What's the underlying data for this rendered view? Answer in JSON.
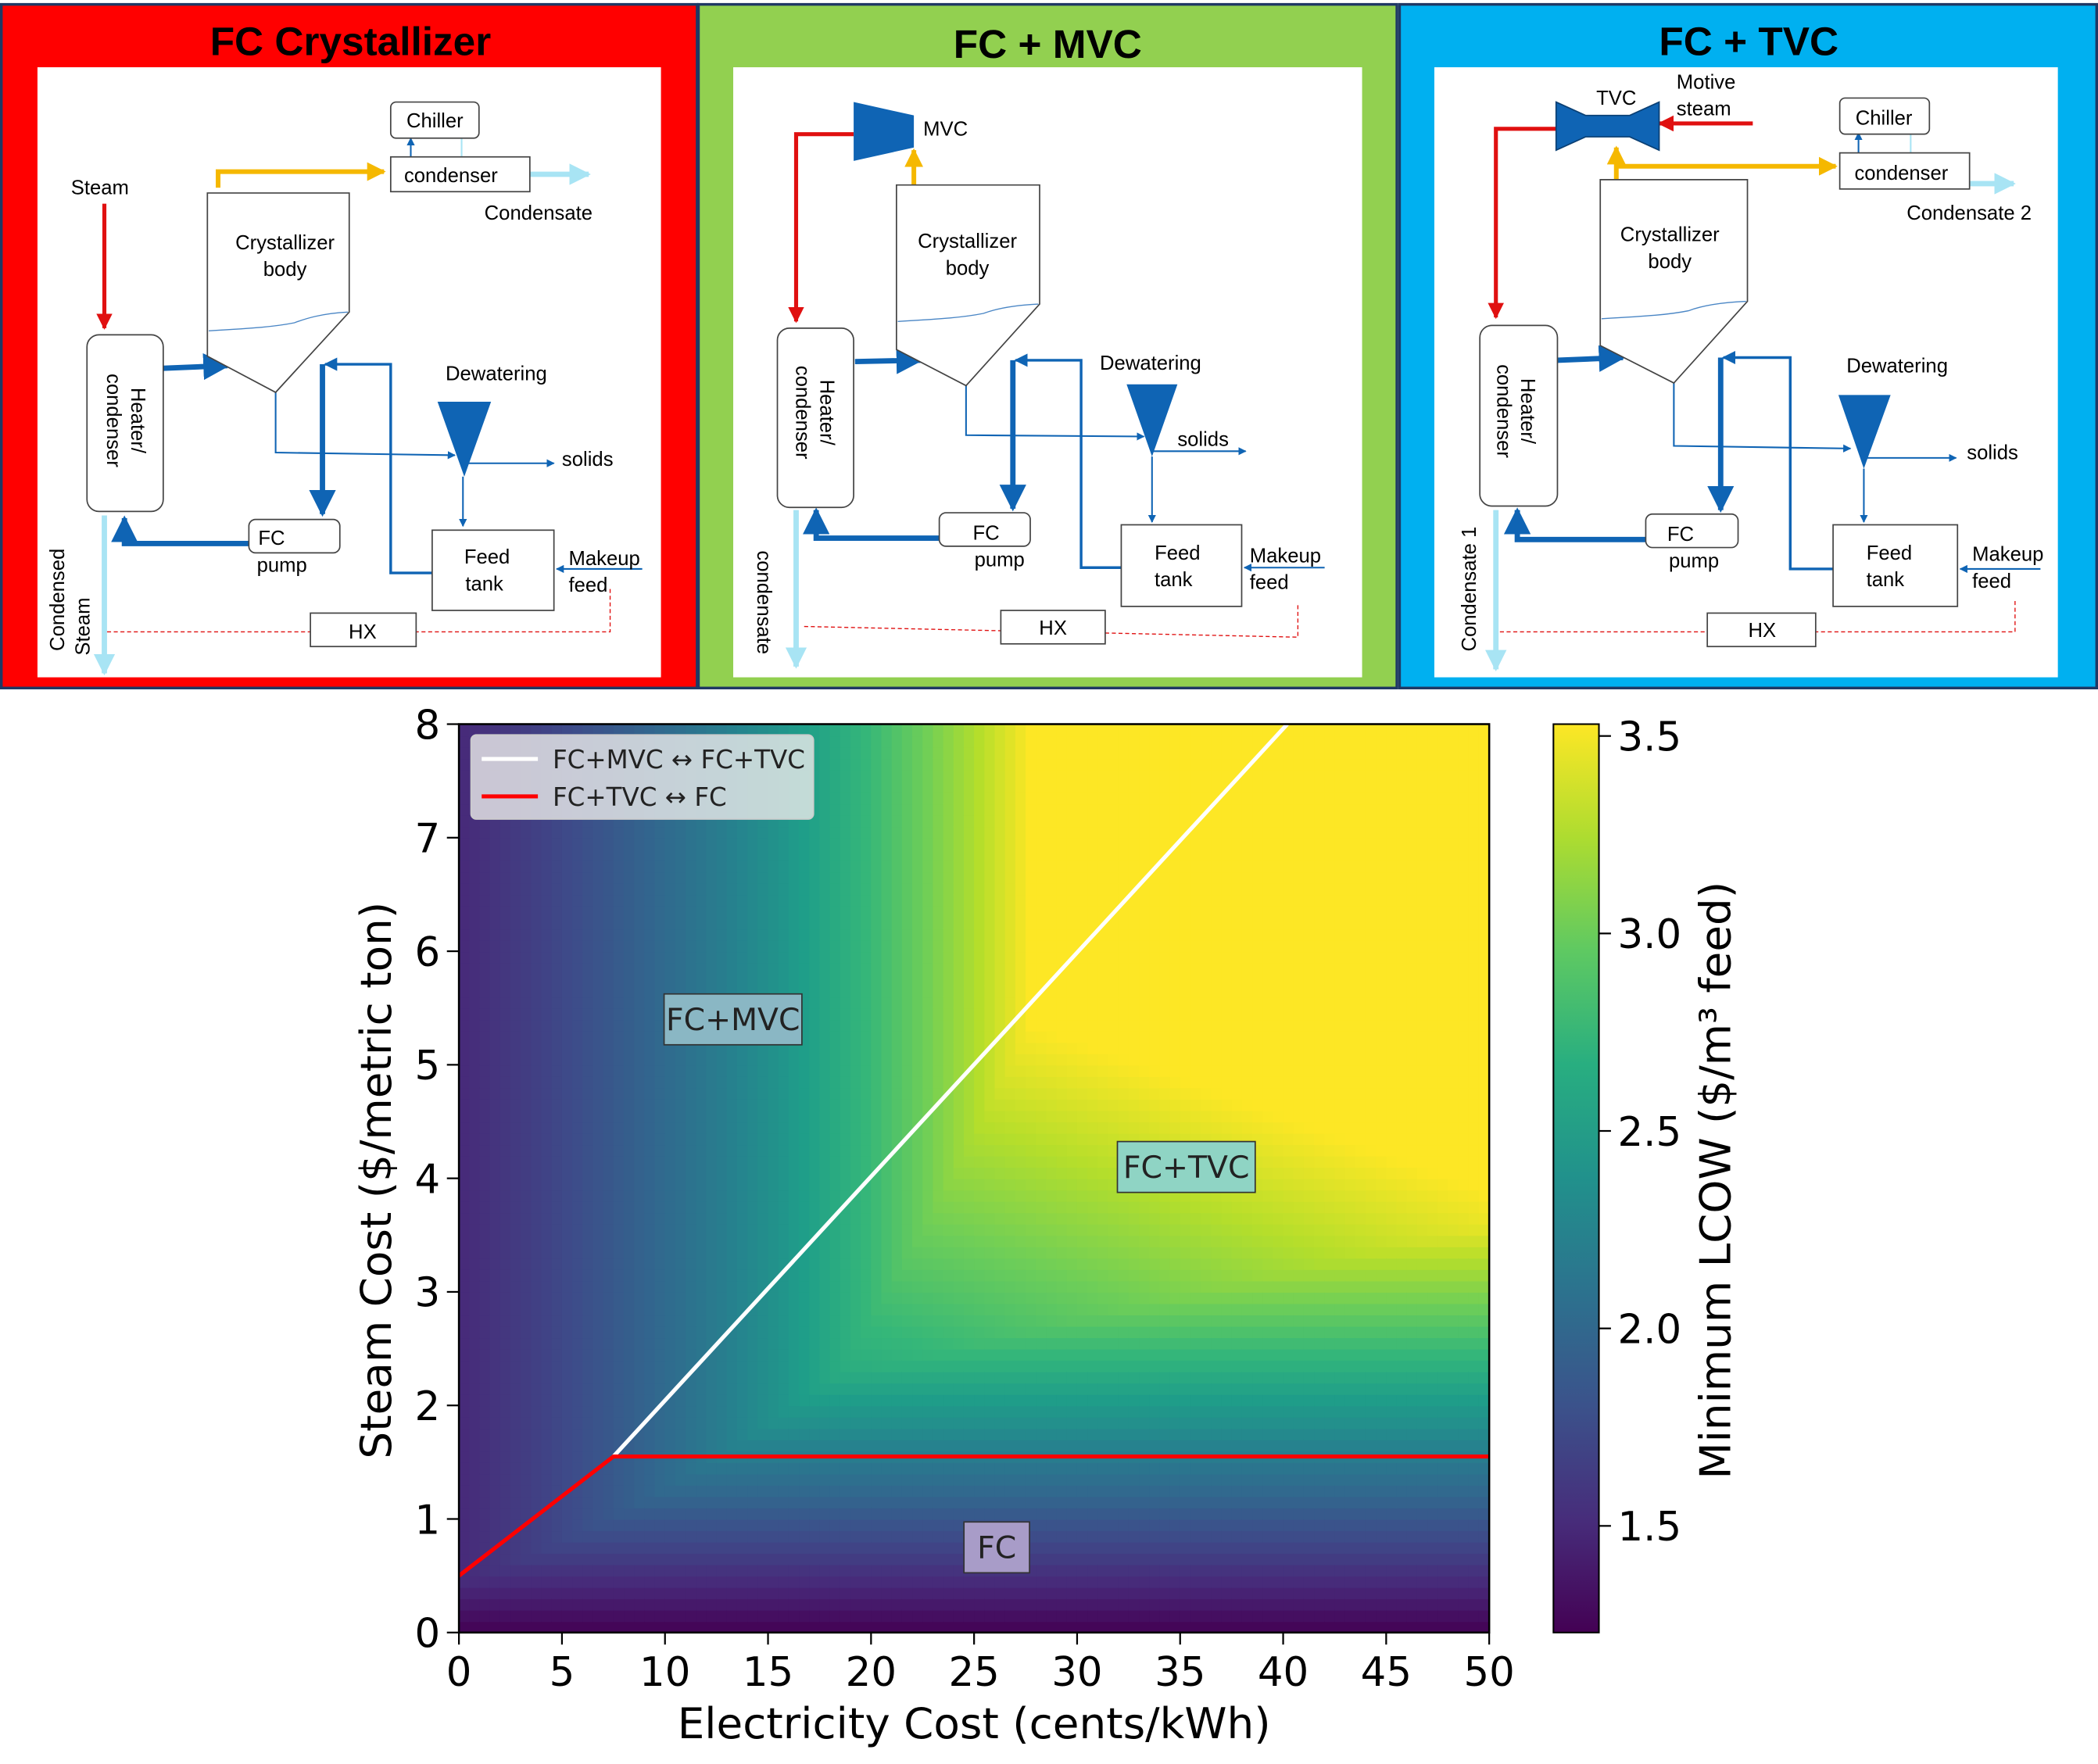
{
  "panels": [
    {
      "title": "FC Crystallizer",
      "bg": "#ff0000",
      "labels": {
        "steam": "Steam",
        "chiller": "Chiller",
        "condenser": "condenser",
        "condensate": "Condensate",
        "crystallizer_1": "Crystallizer",
        "crystallizer_2": "body",
        "heater_1": "Heater/",
        "heater_2": "condenser",
        "dewatering": "Dewatering",
        "solids": "solids",
        "fc_pump_1": "FC",
        "fc_pump_2": "pump",
        "feed_tank_1": "Feed",
        "feed_tank_2": "tank",
        "makeup_1": "Makeup",
        "makeup_2": "feed",
        "hx": "HX",
        "out_1": "Condensed",
        "out_2": "Steam"
      }
    },
    {
      "title": "FC + MVC",
      "bg": "#92d050",
      "labels": {
        "mvc": "MVC",
        "crystallizer_1": "Crystallizer",
        "crystallizer_2": "body",
        "heater_1": "Heater/",
        "heater_2": "condenser",
        "dewatering": "Dewatering",
        "solids": "solids",
        "fc_pump_1": "FC",
        "fc_pump_2": "pump",
        "feed_tank_1": "Feed",
        "feed_tank_2": "tank",
        "makeup_1": "Makeup",
        "makeup_2": "feed",
        "hx": "HX",
        "out_1": "condensate"
      }
    },
    {
      "title": "FC + TVC",
      "bg": "#00b0f0",
      "labels": {
        "tvc": "TVC",
        "motive_1": "Motive",
        "motive_2": "steam",
        "chiller": "Chiller",
        "condenser": "condenser",
        "condensate": "Condensate 2",
        "crystallizer_1": "Crystallizer",
        "crystallizer_2": "body",
        "heater_1": "Heater/",
        "heater_2": "condenser",
        "dewatering": "Dewatering",
        "solids": "solids",
        "fc_pump_1": "FC",
        "fc_pump_2": "pump",
        "feed_tank_1": "Feed",
        "feed_tank_2": "tank",
        "makeup_1": "Makeup",
        "makeup_2": "feed",
        "hx": "HX",
        "out_1": "Condensate 1"
      }
    }
  ],
  "chart_data": {
    "type": "heatmap",
    "xlabel": "Electricity Cost (cents/kWh)",
    "ylabel": "Steam Cost ($/metric ton)",
    "xlim": [
      0,
      50
    ],
    "ylim": [
      0,
      8
    ],
    "xticks": [
      0,
      5,
      10,
      15,
      20,
      25,
      30,
      35,
      40,
      45,
      50
    ],
    "yticks": [
      0,
      1,
      2,
      3,
      4,
      5,
      6,
      7,
      8
    ],
    "colorbar": {
      "label": "Minimum LCOW ($/m³ feed)",
      "range": [
        1.23,
        3.53
      ],
      "ticks": [
        1.5,
        2.0,
        2.5,
        3.0,
        3.5
      ],
      "colormap": "viridis"
    },
    "series": [
      {
        "name": "FC+MVC ↔ FC+TVC",
        "color": "#ffffff",
        "x": [
          7.5,
          40.2
        ],
        "y": [
          1.55,
          8.0
        ]
      },
      {
        "name": "FC+TVC ↔ FC",
        "color": "#ff0000",
        "x": [
          0,
          7.5,
          50
        ],
        "y": [
          0.5,
          1.55,
          1.55
        ]
      }
    ],
    "annotations": [
      {
        "text": "FC+MVC",
        "x": 13.3,
        "y": 5.4
      },
      {
        "text": "FC+TVC",
        "x": 35.3,
        "y": 4.1
      },
      {
        "text": "FC",
        "x": 26.1,
        "y": 0.75
      }
    ],
    "legend": "upper-left"
  }
}
